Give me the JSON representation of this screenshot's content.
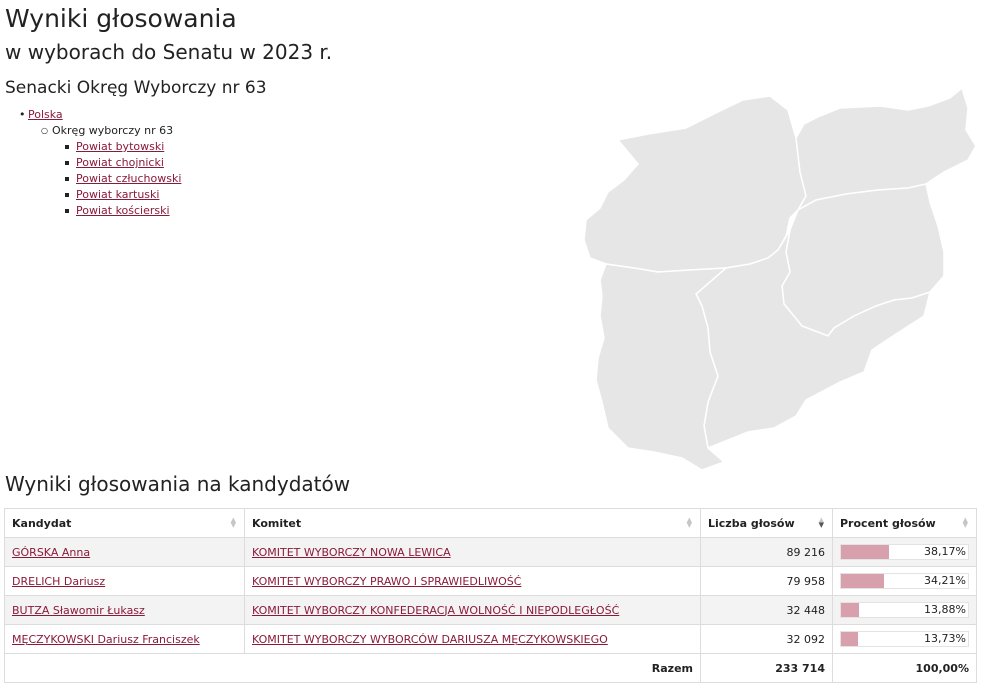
{
  "header": {
    "title": "Wyniki głosowania",
    "subtitle": "w wyborach do Senatu w 2023 r.",
    "district": "Senacki Okręg Wyborczy nr 63"
  },
  "breadcrumb": {
    "country": "Polska",
    "district": "Okręg wyborczy nr 63",
    "powiats": [
      "Powiat bytowski",
      "Powiat chojnicki",
      "Powiat człuchowski",
      "Powiat kartuski",
      "Powiat kościerski"
    ]
  },
  "map": {
    "fill": "#e6e6e6",
    "stroke": "#ffffff",
    "outline": "#cfcfcf"
  },
  "results": {
    "title": "Wyniki głosowania na kandydatów",
    "columns": [
      "Kandydat",
      "Komitet",
      "Liczba głosów",
      "Procent głosów"
    ],
    "bar_color": "#d8a0ad",
    "rows": [
      {
        "candidate": "GÓRSKA Anna",
        "committee": "KOMITET WYBORCZY NOWA LEWICA",
        "votes": "89 216",
        "percent": "38,17%",
        "share": 0.3817
      },
      {
        "candidate": "DRELICH Dariusz",
        "committee": "KOMITET WYBORCZY PRAWO I SPRAWIEDLIWOŚĆ",
        "votes": "79 958",
        "percent": "34,21%",
        "share": 0.3421
      },
      {
        "candidate": "BUTZA Sławomir Łukasz",
        "committee": "KOMITET WYBORCZY KONFEDERACJA WOLNOŚĆ I NIEPODLEGŁOŚĆ",
        "votes": "32 448",
        "percent": "13,88%",
        "share": 0.1388
      },
      {
        "candidate": "MĘCZYKOWSKI Dariusz Franciszek",
        "committee": "KOMITET WYBORCZY WYBORCÓW DARIUSZA MĘCZYKOWSKIEGO",
        "votes": "32 092",
        "percent": "13,73%",
        "share": 0.1373
      }
    ],
    "total": {
      "label": "Razem",
      "votes": "233 714",
      "percent": "100,00%"
    }
  }
}
